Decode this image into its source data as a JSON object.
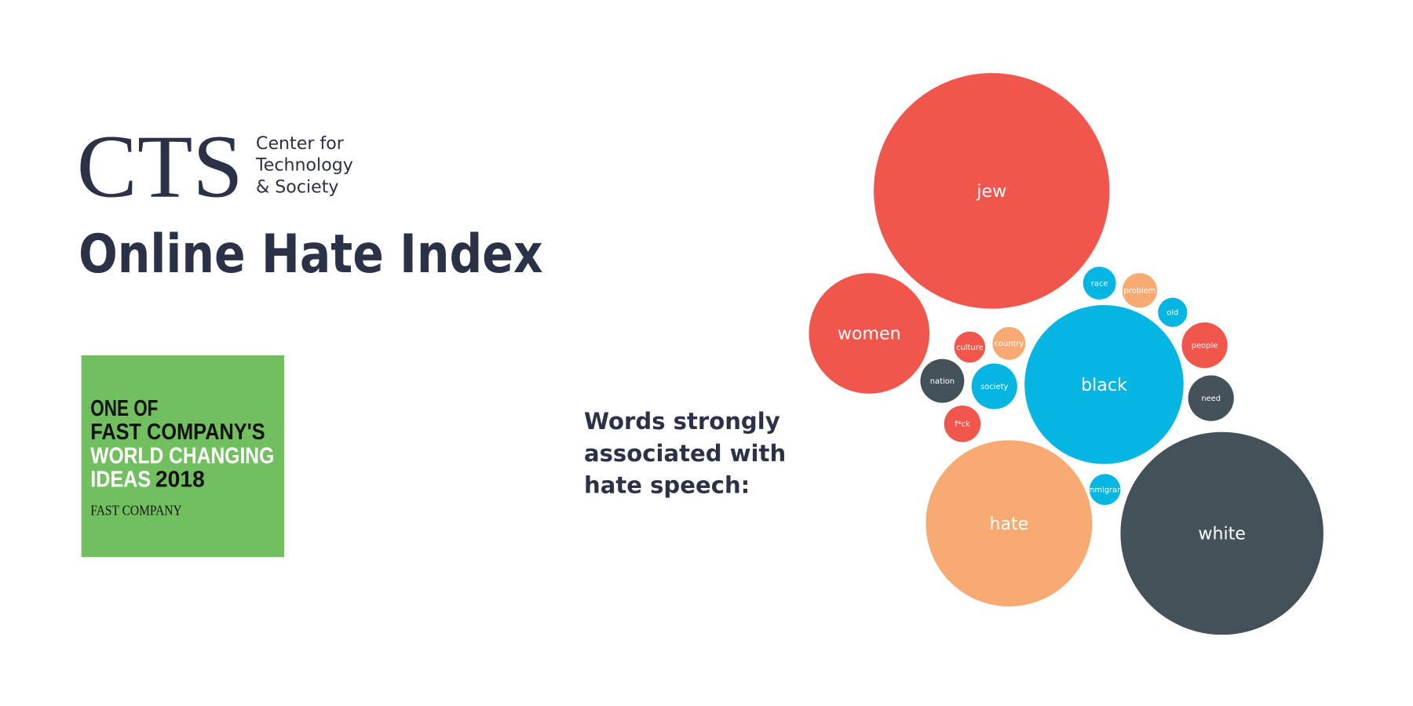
{
  "logo": {
    "mark": "CTS",
    "lines": [
      "Center for",
      "Technology",
      "& Society"
    ]
  },
  "title": "Online Hate Index",
  "badge": {
    "line1": "ONE OF",
    "line2": "FAST COMPANY'S",
    "line3": "WORLD CHANGING",
    "line4a": "IDEAS",
    "line4b": "2018",
    "brand": "FAST COMPANY"
  },
  "caption": [
    "Words strongly",
    "associated with",
    "hate speech:"
  ],
  "words": [
    {
      "label": "jew",
      "color": "#f0564b"
    },
    {
      "label": "women",
      "color": "#f0564b"
    },
    {
      "label": "black",
      "color": "#06b6e2"
    },
    {
      "label": "white",
      "color": "#435159"
    },
    {
      "label": "hate",
      "color": "#f7aa72"
    },
    {
      "label": "race",
      "color": "#06b6e2"
    },
    {
      "label": "problem",
      "color": "#f7aa72"
    },
    {
      "label": "old",
      "color": "#06b6e2"
    },
    {
      "label": "people",
      "color": "#f0564b"
    },
    {
      "label": "need",
      "color": "#435159"
    },
    {
      "label": "culture",
      "color": "#f0564b"
    },
    {
      "label": "country",
      "color": "#f7aa72"
    },
    {
      "label": "nation",
      "color": "#435159"
    },
    {
      "label": "society",
      "color": "#06b6e2"
    },
    {
      "label": "f*ck",
      "color": "#f0564b"
    },
    {
      "label": "immigrant",
      "color": "#06b6e2"
    }
  ]
}
